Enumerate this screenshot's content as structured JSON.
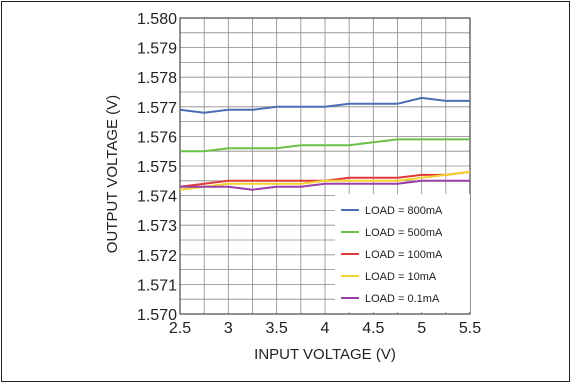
{
  "chart_data": {
    "type": "line",
    "title": "",
    "xlabel": "INPUT VOLTAGE (V)",
    "ylabel": "OUTPUT VOLTAGE (V)",
    "xlim": [
      2.5,
      5.5
    ],
    "ylim": [
      1.57,
      1.58
    ],
    "x_ticks": [
      "2.5",
      "3",
      "3.5",
      "4",
      "4.5",
      "5",
      "5.5"
    ],
    "y_ticks": [
      "1.570",
      "1.571",
      "1.572",
      "1.573",
      "1.574",
      "1.575",
      "1.576",
      "1.577",
      "1.578",
      "1.579",
      "1.580"
    ],
    "grid": true,
    "legend_position": "bottom-right",
    "series": [
      {
        "name": "LOAD = 800mA",
        "color": "#4a6fb5",
        "x": [
          2.5,
          2.75,
          3.0,
          3.25,
          3.5,
          3.75,
          4.0,
          4.25,
          4.5,
          4.75,
          5.0,
          5.25,
          5.5
        ],
        "y": [
          1.5769,
          1.5768,
          1.5769,
          1.5769,
          1.577,
          1.577,
          1.577,
          1.5771,
          1.5771,
          1.5771,
          1.5773,
          1.5772,
          1.5772
        ]
      },
      {
        "name": "LOAD = 500mA",
        "color": "#6cc04a",
        "x": [
          2.5,
          2.75,
          3.0,
          3.25,
          3.5,
          3.75,
          4.0,
          4.25,
          4.5,
          4.75,
          5.0,
          5.25,
          5.5
        ],
        "y": [
          1.5755,
          1.5755,
          1.5756,
          1.5756,
          1.5756,
          1.5757,
          1.5757,
          1.5757,
          1.5758,
          1.5759,
          1.5759,
          1.5759,
          1.5759
        ]
      },
      {
        "name": "LOAD = 100mA",
        "color": "#e03a3a",
        "x": [
          2.5,
          2.75,
          3.0,
          3.25,
          3.5,
          3.75,
          4.0,
          4.25,
          4.5,
          4.75,
          5.0,
          5.25,
          5.5
        ],
        "y": [
          1.5743,
          1.5744,
          1.5745,
          1.5745,
          1.5745,
          1.5745,
          1.5745,
          1.5746,
          1.5746,
          1.5746,
          1.5747,
          1.5747,
          1.5748
        ]
      },
      {
        "name": "LOAD = 10mA",
        "color": "#f2d22e",
        "x": [
          2.5,
          2.75,
          3.0,
          3.25,
          3.5,
          3.75,
          4.0,
          4.25,
          4.5,
          4.75,
          5.0,
          5.25,
          5.5
        ],
        "y": [
          1.5742,
          1.5743,
          1.5744,
          1.5744,
          1.5744,
          1.5744,
          1.5745,
          1.5745,
          1.5745,
          1.5745,
          1.5746,
          1.5747,
          1.5748
        ]
      },
      {
        "name": "LOAD = 0.1mA",
        "color": "#9b3fa8",
        "x": [
          2.5,
          2.75,
          3.0,
          3.25,
          3.5,
          3.75,
          4.0,
          4.25,
          4.5,
          4.75,
          5.0,
          5.25,
          5.5
        ],
        "y": [
          1.5743,
          1.5743,
          1.5743,
          1.5742,
          1.5743,
          1.5743,
          1.5744,
          1.5744,
          1.5744,
          1.5744,
          1.5745,
          1.5745,
          1.5745
        ]
      }
    ]
  }
}
